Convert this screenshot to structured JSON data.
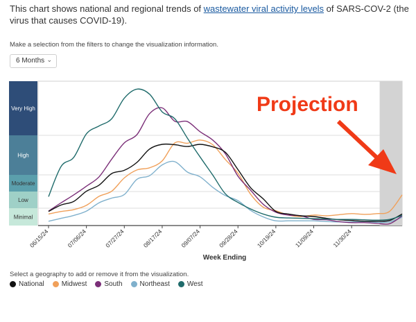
{
  "intro": {
    "prefix": "This chart shows national and regional trends of ",
    "link": "wastewater viral activity levels",
    "suffix": " of SARS-COV-2 (the virus that causes COVID-19)."
  },
  "filter_hint": "Make a selection from the filters to change the visualization information.",
  "filter_select": {
    "value": "6 Months",
    "icon": "chevron-down-icon"
  },
  "geo_hint": "Select a geography to add or remove it from the visualization.",
  "annotation": {
    "text": "Projection",
    "color": "#f03a17"
  },
  "colors": {
    "National": "#111111",
    "Midwest": "#f0a05a",
    "South": "#7b2f78",
    "Northeast": "#7fb0cc",
    "West": "#1f6b6b"
  },
  "chart_data": {
    "type": "line",
    "xlabel": "Week Ending",
    "x_ticks": [
      "06/15/24",
      "07/06/24",
      "07/27/24",
      "08/17/24",
      "09/07/24",
      "09/28/24",
      "10/19/24",
      "11/09/24",
      "11/30/24"
    ],
    "levels": [
      {
        "label": "Very High",
        "color": "#2e4d78"
      },
      {
        "label": "High",
        "color": "#4c7f98"
      },
      {
        "label": "Moderate",
        "color": "#5b9fac"
      },
      {
        "label": "Low",
        "color": "#9fd0c7"
      },
      {
        "label": "Minimal",
        "color": "#c6e8da"
      }
    ],
    "projection_weeks": 2,
    "series": [
      {
        "name": "National",
        "color": "#111111",
        "values": [
          3.9,
          5.7,
          6.7,
          9.5,
          11.2,
          14.4,
          15.3,
          17.5,
          21.2,
          22.5,
          22.4,
          21.9,
          22.5,
          21.8,
          20.3,
          15.5,
          10.5,
          7.4,
          3.9,
          3.2,
          2.7,
          2.5,
          2.0,
          1.6,
          1.4,
          1.2,
          1.2,
          1.4,
          3.2
        ]
      },
      {
        "name": "Midwest",
        "color": "#f0a05a",
        "values": [
          3.2,
          3.9,
          4.4,
          5.6,
          8.1,
          9.5,
          13.2,
          15.4,
          16.0,
          17.9,
          22.9,
          22.8,
          23.7,
          22.4,
          18.3,
          14.5,
          8.7,
          5.1,
          4.1,
          2.9,
          2.5,
          2.9,
          2.7,
          3.0,
          3.3,
          3.1,
          3.3,
          3.9,
          8.5
        ]
      },
      {
        "name": "South",
        "color": "#7b2f78",
        "values": [
          4.0,
          6.3,
          8.5,
          10.9,
          13.5,
          18.4,
          22.9,
          25.2,
          31.0,
          32.6,
          28.9,
          28.8,
          26.0,
          23.7,
          19.9,
          13.7,
          9.8,
          5.9,
          3.7,
          2.9,
          2.7,
          1.7,
          1.6,
          1.1,
          0.8,
          0.8,
          0.6,
          0.5,
          2.7
        ]
      },
      {
        "name": "Northeast",
        "color": "#7fb0cc",
        "values": [
          1.2,
          2.0,
          2.8,
          4.0,
          6.3,
          7.6,
          8.6,
          12.8,
          13.8,
          16.8,
          17.7,
          14.8,
          13.5,
          10.6,
          8.3,
          6.9,
          4.2,
          2.4,
          1.3,
          1.3,
          1.3,
          1.3,
          1.1,
          1.0,
          1.0,
          1.1,
          0.9,
          1.0,
          2.3
        ]
      },
      {
        "name": "West",
        "color": "#1f6b6b",
        "values": [
          8.0,
          16.4,
          18.9,
          25.4,
          27.6,
          29.6,
          35.3,
          37.8,
          36.4,
          31.5,
          29.6,
          24.2,
          19.0,
          14.0,
          8.8,
          6.4,
          4.6,
          3.2,
          2.3,
          2.1,
          2.0,
          1.9,
          1.8,
          1.7,
          1.7,
          1.6,
          1.5,
          1.7,
          2.8
        ]
      }
    ]
  },
  "legend": [
    {
      "label": "National",
      "color": "#111111"
    },
    {
      "label": "Midwest",
      "color": "#f0a05a"
    },
    {
      "label": "South",
      "color": "#7b2f78"
    },
    {
      "label": "Northeast",
      "color": "#7fb0cc"
    },
    {
      "label": "West",
      "color": "#1f6b6b"
    }
  ]
}
